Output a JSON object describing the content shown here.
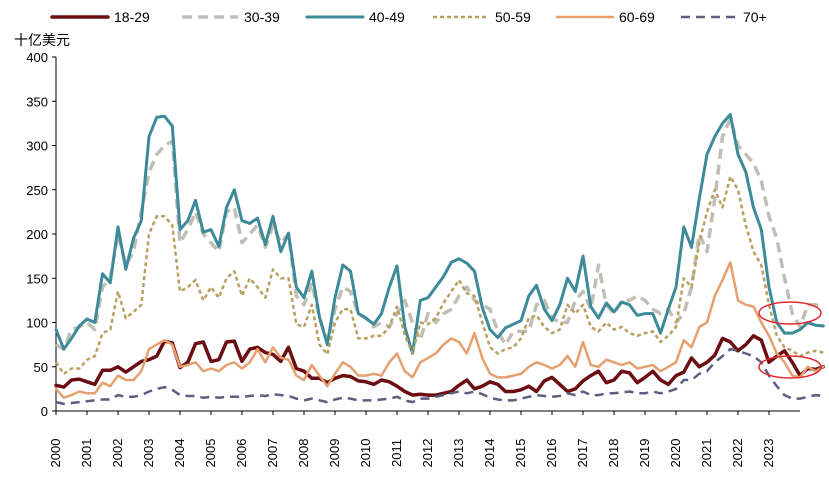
{
  "chart_data": {
    "type": "line",
    "ylabel": "十亿美元",
    "ylim": [
      0,
      400
    ],
    "yticks": [
      0,
      50,
      100,
      150,
      200,
      250,
      300,
      350,
      400
    ],
    "x_start": 2000.0,
    "x_step": 0.25,
    "xlim": [
      2000,
      2024
    ],
    "xticks": [
      "2000",
      "2001",
      "2002",
      "2003",
      "2004",
      "2005",
      "2006",
      "2007",
      "2008",
      "2009",
      "2010",
      "2011",
      "2012",
      "2013",
      "2014",
      "2015",
      "2016",
      "2017",
      "2018",
      "2019",
      "2020",
      "2021",
      "2022",
      "2023"
    ],
    "grid": false,
    "legend_position": "top",
    "series": [
      {
        "name": "18-29",
        "color": "#6b0d12",
        "dash": "solid",
        "width": 3.5,
        "values": [
          29,
          27,
          35,
          36,
          33,
          30,
          46,
          46,
          50,
          44,
          50,
          56,
          58,
          62,
          79,
          77,
          49,
          55,
          76,
          78,
          56,
          58,
          78,
          79,
          56,
          70,
          72,
          66,
          64,
          56,
          72,
          48,
          45,
          37,
          37,
          32,
          37,
          40,
          39,
          34,
          33,
          30,
          35,
          33,
          28,
          22,
          18,
          19,
          18,
          18,
          20,
          22,
          29,
          35,
          25,
          28,
          33,
          30,
          22,
          22,
          24,
          28,
          22,
          34,
          38,
          30,
          22,
          25,
          34,
          40,
          45,
          32,
          35,
          45,
          43,
          32,
          38,
          45,
          35,
          30,
          40,
          44,
          60,
          50,
          55,
          63,
          82,
          78,
          68,
          75,
          85,
          80,
          55,
          62,
          68,
          55,
          40,
          48,
          47,
          50
        ]
      },
      {
        "name": "30-39",
        "color": "#c0bfb5",
        "dash": "dash",
        "width": 3.5,
        "values": [
          75,
          70,
          92,
          95,
          100,
          92,
          140,
          150,
          200,
          165,
          180,
          225,
          270,
          290,
          300,
          305,
          190,
          205,
          225,
          200,
          190,
          180,
          225,
          230,
          190,
          200,
          210,
          185,
          210,
          190,
          200,
          130,
          120,
          145,
          105,
          80,
          115,
          140,
          135,
          110,
          105,
          95,
          100,
          95,
          110,
          125,
          100,
          80,
          110,
          100,
          110,
          115,
          130,
          140,
          125,
          120,
          115,
          90,
          75,
          90,
          90,
          90,
          120,
          125,
          105,
          100,
          100,
          125,
          135,
          115,
          165,
          120,
          110,
          125,
          125,
          130,
          125,
          115,
          110,
          115,
          100,
          110,
          140,
          200,
          180,
          240,
          310,
          330,
          300,
          290,
          280,
          260,
          220,
          195,
          150,
          110,
          95,
          120,
          120,
          118
        ]
      },
      {
        "name": "40-49",
        "color": "#3d8a98",
        "dash": "solid",
        "width": 3,
        "values": [
          92,
          70,
          82,
          96,
          104,
          100,
          155,
          145,
          208,
          160,
          195,
          215,
          310,
          332,
          333,
          322,
          205,
          215,
          238,
          202,
          205,
          186,
          230,
          250,
          215,
          212,
          218,
          188,
          220,
          180,
          201,
          140,
          128,
          158,
          106,
          75,
          128,
          165,
          158,
          110,
          105,
          98,
          110,
          140,
          164,
          95,
          65,
          125,
          128,
          140,
          152,
          168,
          172,
          167,
          158,
          117,
          92,
          83,
          94,
          98,
          102,
          130,
          142,
          115,
          102,
          120,
          150,
          135,
          175,
          118,
          105,
          122,
          112,
          123,
          120,
          108,
          110,
          110,
          88,
          115,
          140,
          208,
          185,
          240,
          290,
          310,
          325,
          335,
          290,
          270,
          230,
          205,
          140,
          100,
          88,
          88,
          92,
          100,
          97,
          96
        ]
      },
      {
        "name": "50-59",
        "color": "#b8a060",
        "dash": "shortdash",
        "width": 2.5,
        "values": [
          55,
          42,
          48,
          48,
          58,
          62,
          88,
          92,
          135,
          105,
          112,
          120,
          200,
          220,
          220,
          210,
          135,
          140,
          148,
          125,
          140,
          128,
          150,
          158,
          130,
          150,
          140,
          128,
          160,
          150,
          150,
          98,
          95,
          120,
          75,
          64,
          100,
          115,
          115,
          82,
          82,
          85,
          85,
          95,
          118,
          86,
          65,
          100,
          98,
          105,
          122,
          135,
          148,
          133,
          130,
          100,
          72,
          65,
          70,
          72,
          82,
          105,
          108,
          95,
          88,
          92,
          120,
          110,
          120,
          95,
          90,
          100,
          92,
          95,
          88,
          85,
          88,
          90,
          78,
          85,
          95,
          150,
          140,
          190,
          225,
          250,
          230,
          265,
          250,
          210,
          180,
          165,
          120,
          85,
          72,
          68,
          62,
          66,
          68,
          66
        ]
      },
      {
        "name": "60-69",
        "color": "#e6a070",
        "dash": "solid",
        "width": 2.5,
        "values": [
          25,
          15,
          18,
          22,
          20,
          20,
          32,
          28,
          40,
          35,
          35,
          45,
          70,
          75,
          80,
          75,
          50,
          52,
          55,
          45,
          48,
          45,
          52,
          55,
          48,
          55,
          70,
          55,
          72,
          60,
          58,
          40,
          35,
          52,
          40,
          28,
          42,
          55,
          50,
          40,
          40,
          42,
          40,
          55,
          65,
          45,
          38,
          55,
          60,
          65,
          75,
          82,
          78,
          65,
          88,
          60,
          42,
          38,
          38,
          40,
          42,
          50,
          55,
          52,
          48,
          52,
          62,
          50,
          78,
          52,
          50,
          58,
          55,
          52,
          55,
          48,
          50,
          52,
          45,
          50,
          55,
          80,
          72,
          95,
          100,
          130,
          148,
          168,
          125,
          120,
          118,
          100,
          85,
          65,
          55,
          40,
          38,
          50,
          45,
          50
        ]
      },
      {
        "name": "70+",
        "color": "#5c5f80",
        "dash": "longdash",
        "width": 2.5,
        "values": [
          10,
          8,
          9,
          10,
          11,
          12,
          13,
          13,
          18,
          16,
          16,
          18,
          22,
          25,
          27,
          24,
          18,
          17,
          17,
          15,
          16,
          15,
          16,
          16,
          16,
          17,
          18,
          17,
          19,
          18,
          17,
          14,
          12,
          14,
          12,
          10,
          13,
          15,
          14,
          12,
          12,
          12,
          13,
          14,
          16,
          12,
          10,
          14,
          14,
          16,
          18,
          20,
          22,
          20,
          22,
          19,
          15,
          13,
          12,
          12,
          14,
          16,
          18,
          17,
          16,
          17,
          20,
          18,
          22,
          18,
          18,
          20,
          20,
          21,
          22,
          20,
          20,
          22,
          20,
          22,
          25,
          35,
          35,
          42,
          45,
          55,
          62,
          70,
          68,
          65,
          62,
          55,
          40,
          28,
          18,
          14,
          14,
          16,
          18,
          17
        ]
      }
    ]
  }
}
